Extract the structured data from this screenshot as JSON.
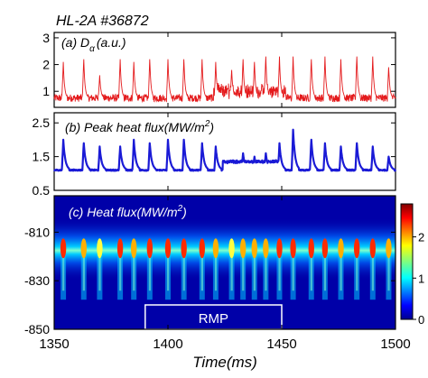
{
  "figure_title": "HL-2A #36872",
  "colorbar": {
    "ticks": [
      "0",
      "1",
      "2"
    ]
  },
  "rmp_label": "RMP",
  "rmp_window": [
    1390,
    1450
  ],
  "x_axis": {
    "label": "Time(ms)",
    "range": [
      1350,
      1500
    ],
    "ticks": [
      1350,
      1400,
      1450,
      1500
    ],
    "tick_labels": [
      "1350",
      "1400",
      "1450",
      "1500"
    ]
  },
  "chart_data": [
    {
      "type": "line",
      "panel_label": "(a) D",
      "panel_label_sub": "α",
      "panel_label_tail": "(a.u.)",
      "color": "#e41a1c",
      "xlim": [
        1350,
        1500
      ],
      "ylim": [
        0.4,
        3.2
      ],
      "yticks": [
        1,
        2,
        3
      ],
      "ytick_labels": [
        "1",
        "2",
        "3"
      ],
      "baseline": 0.75,
      "elm_spikes": {
        "times": [
          1354,
          1363,
          1370,
          1379,
          1385,
          1392,
          1400,
          1407,
          1415,
          1421,
          1428,
          1433,
          1438,
          1443,
          1449,
          1455,
          1463,
          1469,
          1476,
          1483,
          1490,
          1497
        ],
        "peaks": [
          2.1,
          2.2,
          1.6,
          2.2,
          2.1,
          2.2,
          2.2,
          2.2,
          2.2,
          2.1,
          1.8,
          2.2,
          2.1,
          2.3,
          2.3,
          2.3,
          2.2,
          2.3,
          2.2,
          2.3,
          2.3,
          1.9
        ]
      }
    },
    {
      "type": "line",
      "panel_label": "(b) Peak heat flux(MW/m",
      "panel_label_sup": "2",
      "panel_label_tail": ")",
      "color": "#1a1ad6",
      "xlim": [
        1350,
        1500
      ],
      "ylim": [
        0.5,
        2.8
      ],
      "yticks": [
        0.5,
        1.5,
        2.5
      ],
      "ytick_labels": [
        "0.5",
        "1.5",
        "2.5"
      ],
      "baseline": 1.1,
      "elm_spikes": {
        "times": [
          1354,
          1363,
          1370,
          1379,
          1385,
          1392,
          1400,
          1407,
          1415,
          1421,
          1433,
          1438,
          1443,
          1449,
          1455,
          1463,
          1469,
          1476,
          1483,
          1490,
          1497
        ],
        "peaks": [
          2.0,
          1.9,
          1.8,
          1.8,
          2.0,
          1.9,
          2.0,
          2.0,
          1.9,
          1.8,
          1.6,
          1.5,
          1.6,
          1.9,
          2.3,
          2.0,
          1.9,
          1.8,
          1.9,
          1.8,
          1.5
        ]
      }
    },
    {
      "type": "heatmap",
      "panel_label": "(c) Heat flux(MW/m",
      "panel_label_sup": "2",
      "panel_label_tail": ")",
      "xlim": [
        1350,
        1500
      ],
      "ylim": [
        -850,
        -795
      ],
      "yticks": [
        -810,
        -830,
        -850
      ],
      "ytick_labels": [
        "-810",
        "-830",
        "-850"
      ],
      "strike_line_y": -817,
      "colorbar_range": [
        0,
        2.8
      ],
      "elm_times": [
        1354,
        1363,
        1370,
        1379,
        1385,
        1392,
        1400,
        1407,
        1415,
        1421,
        1428,
        1433,
        1438,
        1443,
        1449,
        1455,
        1463,
        1469,
        1476,
        1483,
        1490,
        1497
      ],
      "elm_amplitudes": [
        2.2,
        2.1,
        1.6,
        2.3,
        2.0,
        2.4,
        2.4,
        2.2,
        2.5,
        2.1,
        1.7,
        2.0,
        1.8,
        2.0,
        2.2,
        2.4,
        2.2,
        2.2,
        2.1,
        2.2,
        2.3,
        1.8
      ]
    }
  ]
}
